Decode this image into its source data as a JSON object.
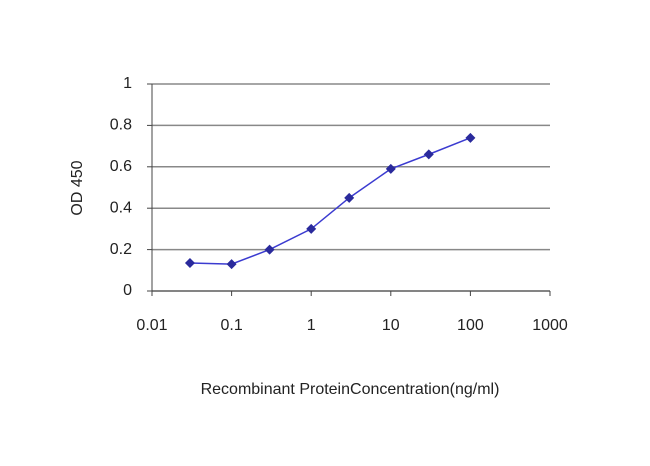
{
  "chart_data": {
    "type": "line",
    "xlabel": "Recombinant ProteinConcentration(ng/ml)",
    "ylabel": "OD 450",
    "x": [
      0.03,
      0.1,
      0.3,
      1,
      3,
      10,
      30,
      100
    ],
    "series": [
      {
        "color": "#2a2a9c",
        "values": [
          0.135,
          0.13,
          0.2,
          0.3,
          0.45,
          0.59,
          0.66,
          0.74
        ]
      }
    ],
    "xscale": "log",
    "xlim": [
      0.01,
      1000
    ],
    "xticks": [
      0.01,
      0.1,
      1,
      10,
      100,
      1000
    ],
    "ylim": [
      0,
      1
    ],
    "yticks": [
      0,
      0.2,
      0.4,
      0.6,
      0.8,
      1
    ],
    "grid": true
  }
}
